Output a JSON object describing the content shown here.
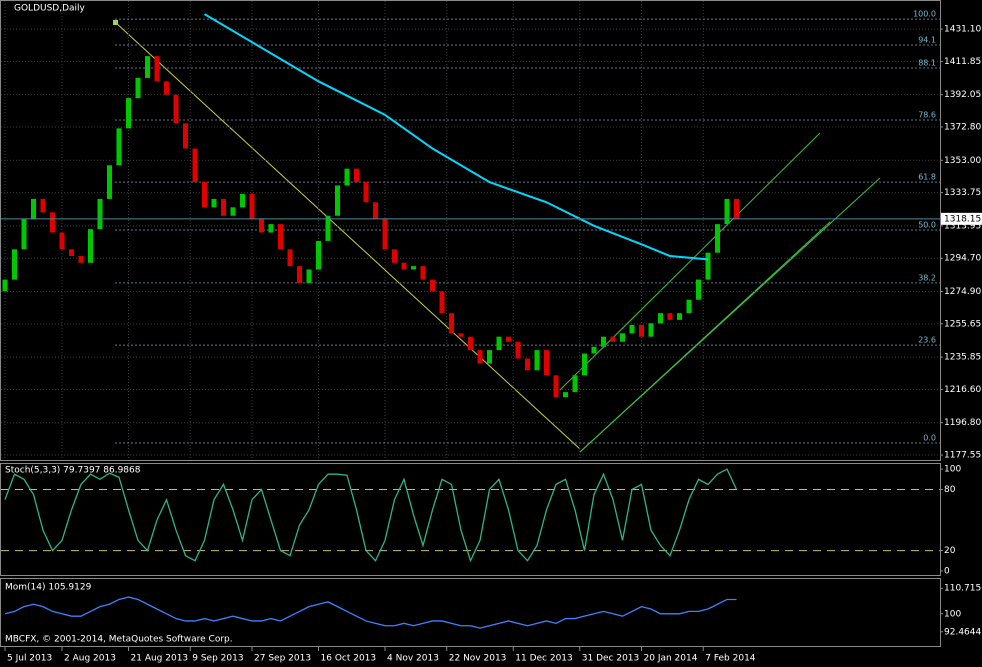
{
  "chart_data": [
    {
      "type": "candlestick",
      "title": "GOLDUSD,Daily",
      "open": [
        1275,
        1282,
        1300,
        1318,
        1330,
        1322,
        1310,
        1300,
        1296,
        1292,
        1312,
        1330,
        1350,
        1372,
        1390,
        1402,
        1415,
        1400,
        1392,
        1375,
        1360,
        1340,
        1325,
        1330,
        1320,
        1325,
        1333,
        1318,
        1310,
        1315,
        1300,
        1290,
        1280,
        1288,
        1305,
        1320,
        1338,
        1348,
        1340,
        1328,
        1318,
        1300,
        1292,
        1288,
        1290,
        1282,
        1275,
        1262,
        1250,
        1248,
        1240,
        1232,
        1240,
        1248,
        1245,
        1235,
        1228,
        1240,
        1225,
        1212,
        1215,
        1225,
        1238,
        1242,
        1248,
        1245,
        1250,
        1255,
        1248,
        1256,
        1262,
        1258,
        1262,
        1270,
        1282,
        1298,
        1315,
        1330
      ],
      "close": [
        1282,
        1300,
        1318,
        1330,
        1322,
        1310,
        1300,
        1296,
        1292,
        1312,
        1330,
        1350,
        1372,
        1390,
        1402,
        1415,
        1400,
        1392,
        1375,
        1360,
        1340,
        1325,
        1330,
        1320,
        1325,
        1333,
        1318,
        1310,
        1315,
        1300,
        1290,
        1280,
        1288,
        1305,
        1320,
        1338,
        1348,
        1340,
        1328,
        1318,
        1300,
        1292,
        1288,
        1290,
        1282,
        1275,
        1262,
        1250,
        1248,
        1240,
        1232,
        1240,
        1248,
        1245,
        1235,
        1228,
        1240,
        1225,
        1212,
        1215,
        1225,
        1238,
        1242,
        1248,
        1245,
        1250,
        1255,
        1248,
        1256,
        1262,
        1258,
        1262,
        1270,
        1282,
        1298,
        1315,
        1330,
        1318
      ],
      "up_color": "#00c800",
      "down_color": "#e00000",
      "overlay": {
        "color": "#00d8ff",
        "x": [
          21,
          27,
          33,
          40,
          45,
          51,
          57,
          62,
          67,
          70,
          74
        ],
        "values": [
          1440,
          1420,
          1400,
          1380,
          1360,
          1340,
          1328,
          1314,
          1303,
          1296,
          1294
        ]
      },
      "fibo": [
        {
          "value": 1437.05,
          "label": "100.0"
        },
        {
          "value": 1421.6,
          "label": "94.1"
        },
        {
          "value": 1407.9,
          "label": "88.1"
        },
        {
          "value": 1377,
          "label": "78.6"
        },
        {
          "value": 1340,
          "label": "61.8"
        },
        {
          "value": 1311.5,
          "label": "50.0"
        },
        {
          "value": 1280,
          "label": "38.2"
        },
        {
          "value": 1243,
          "label": "23.6"
        },
        {
          "value": 1184.7,
          "label": "0.0"
        }
      ],
      "current_price": 1318.15,
      "ylim": [
        1174.6,
        1448.4
      ],
      "yticks": [
        {
          "value": 1431.1,
          "label": "1431.10"
        },
        1411.85,
        {
          "value": 1392.05,
          "label": "1392.05"
        },
        {
          "value": 1372.8,
          "label": "1372.80"
        },
        {
          "value": 1353,
          "label": "1353.00"
        },
        1333.75,
        1313.95,
        {
          "value": 1294.7,
          "label": "1294.70"
        },
        {
          "value": 1274.9,
          "label": "1274.90"
        },
        1255.65,
        1235.85,
        {
          "value": 1216.6,
          "label": "1216.60"
        },
        {
          "value": 1196.8,
          "label": "1196.80"
        },
        1177.55
      ],
      "xticks": [
        {
          "value": 0,
          "label": "5 Jul 2013"
        },
        {
          "value": 6,
          "label": "2 Aug 2013"
        },
        {
          "value": 13,
          "label": "21 Aug 2013"
        },
        {
          "value": 19.5,
          "label": "9 Sep 2013"
        },
        {
          "value": 26,
          "label": "27 Sep 2013"
        },
        {
          "value": 33,
          "label": "16 Oct 2013"
        },
        {
          "value": 40,
          "label": "4 Nov 2013"
        },
        {
          "value": 46.5,
          "label": "22 Nov 2013"
        },
        {
          "value": 53.5,
          "label": "11 Dec 2013"
        },
        {
          "value": 60.5,
          "label": "31 Dec 2013"
        },
        {
          "value": 67,
          "label": "20 Jan 2014"
        },
        {
          "value": 73.5,
          "label": "7 Feb 2014"
        }
      ],
      "grid": true
    },
    {
      "type": "line",
      "title": "Stoch(5,3,3) 79.7397 86.9868",
      "color": "#2fb48a",
      "values": [
        70,
        95,
        90,
        75,
        40,
        20,
        30,
        60,
        85,
        95,
        90,
        96,
        92,
        60,
        30,
        20,
        50,
        70,
        40,
        15,
        10,
        30,
        70,
        85,
        60,
        30,
        70,
        80,
        50,
        20,
        15,
        45,
        60,
        85,
        95,
        95,
        94,
        60,
        20,
        10,
        30,
        70,
        90,
        55,
        25,
        60,
        90,
        85,
        40,
        10,
        30,
        80,
        90,
        60,
        20,
        10,
        25,
        60,
        85,
        90,
        60,
        20,
        75,
        95,
        70,
        30,
        80,
        85,
        40,
        25,
        15,
        40,
        70,
        90,
        85,
        95,
        100,
        80
      ],
      "levels": [
        80,
        20
      ],
      "ylim": [
        -4,
        106
      ],
      "yticks": [
        100,
        80,
        20,
        0
      ]
    },
    {
      "type": "line",
      "title": "Mom(14) 105.9129",
      "color": "#3c82ff",
      "values": [
        100,
        101,
        103,
        104,
        103,
        101,
        100,
        99,
        99,
        101,
        103,
        104,
        106,
        107,
        106,
        104,
        102,
        100,
        98,
        97,
        97,
        98,
        97,
        98,
        99,
        98,
        97,
        97,
        98,
        97,
        99,
        101,
        103,
        104,
        105,
        103,
        101,
        99,
        97,
        96,
        95,
        95,
        96,
        95,
        96,
        97,
        97,
        96,
        95,
        95,
        94,
        95,
        96,
        97,
        96,
        95,
        96,
        97,
        96,
        98,
        98,
        99,
        100,
        101,
        100,
        99,
        101,
        103,
        102,
        100,
        100,
        100,
        101,
        101,
        102,
        104,
        106,
        106
      ],
      "ylim": [
        86.5,
        115
      ],
      "yticks": [
        110.7156,
        100,
        92.4644
      ]
    }
  ],
  "footer": "MBCFX, © 2001-2014, MetaQuotes Software Corp."
}
